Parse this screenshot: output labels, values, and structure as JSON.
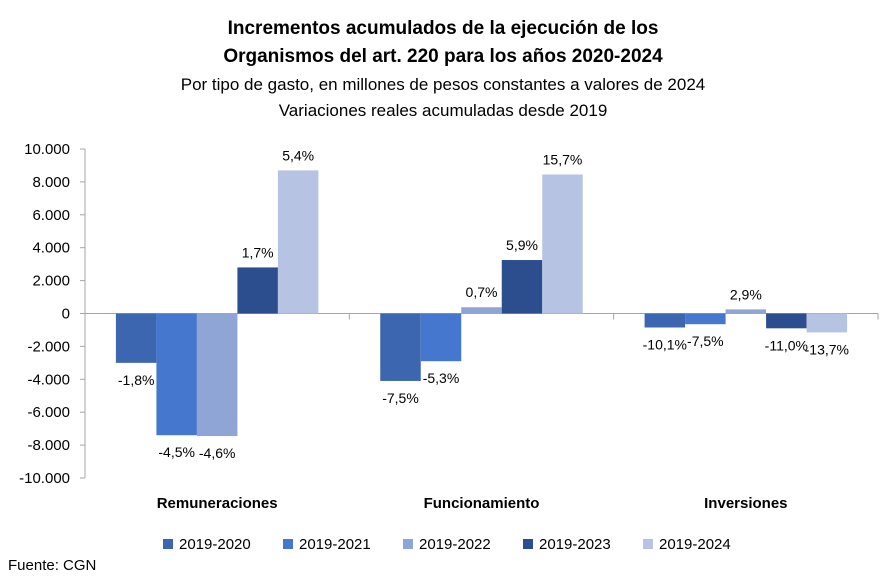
{
  "chart_data": {
    "type": "bar",
    "title_line1": "Incrementos acumulados de la ejecución de los",
    "title_line2": "Organismos del art. 220 para los años 2020-2024",
    "subtitle_line1": "Por tipo de gasto, en millones de pesos constantes a valores de 2024",
    "subtitle_line2": "Variaciones reales acumuladas desde 2019",
    "categories": [
      "Remuneraciones",
      "Funcionamiento",
      "Inversiones"
    ],
    "ylim": [
      -10000,
      10000
    ],
    "yticks": [
      10000,
      8000,
      6000,
      4000,
      2000,
      0,
      -2000,
      -4000,
      -6000,
      -8000,
      -10000
    ],
    "ytick_labels": [
      "10.000",
      "8.000",
      "6.000",
      "4.000",
      "2.000",
      "0",
      "-2.000",
      "-4.000",
      "-6.000",
      "-8.000",
      "-10.000"
    ],
    "grid": false,
    "legend_position": "bottom",
    "series": [
      {
        "name": "2019-2020",
        "color": "#3d66b0",
        "values": [
          -3000,
          -4100,
          -850
        ],
        "labels": [
          "-1,8%",
          "-7,5%",
          "-10,1%"
        ]
      },
      {
        "name": "2019-2021",
        "color": "#4677cf",
        "values": [
          -7400,
          -2900,
          -650
        ],
        "labels": [
          "-4,5%",
          "-5,3%",
          "-7,5%"
        ]
      },
      {
        "name": "2019-2022",
        "color": "#8fa5d6",
        "values": [
          -7450,
          380,
          250
        ],
        "labels": [
          "-4,6%",
          "0,7%",
          "2,9%"
        ]
      },
      {
        "name": "2019-2023",
        "color": "#2c4e8f",
        "values": [
          2800,
          3250,
          -900
        ],
        "labels": [
          "1,7%",
          "5,9%",
          "-11,0%"
        ]
      },
      {
        "name": "2019-2024",
        "color": "#b7c3e3",
        "values": [
          8700,
          8450,
          -1150
        ],
        "labels": [
          "5,4%",
          "15,7%",
          "-13,7%"
        ]
      }
    ],
    "source": "Fuente: CGN"
  }
}
